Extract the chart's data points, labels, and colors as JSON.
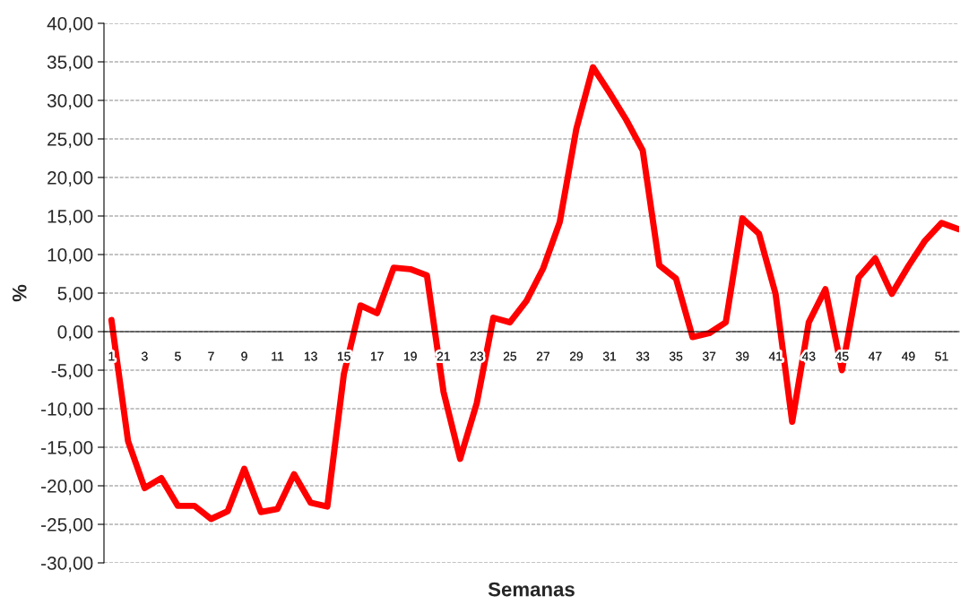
{
  "chart_data": {
    "type": "line",
    "xlabel": "Semanas",
    "ylabel": "%",
    "categories": [
      "1",
      null,
      "3",
      null,
      "5",
      null,
      "7",
      null,
      "9",
      null,
      "11",
      null,
      "13",
      null,
      "15",
      null,
      "17",
      null,
      "19",
      null,
      "21",
      null,
      "23",
      null,
      "25",
      null,
      "27",
      null,
      "29",
      null,
      "31",
      null,
      "33",
      null,
      "35",
      null,
      "37",
      null,
      "39",
      null,
      "41",
      null,
      "43",
      null,
      "45",
      null,
      "47",
      null,
      "49",
      null,
      "51",
      null
    ],
    "series": [
      {
        "color": "#ff0000",
        "values": [
          1.5,
          -14.2,
          -20.3,
          -19.0,
          -22.6,
          -22.6,
          -24.3,
          -23.3,
          -17.8,
          -23.4,
          -23.0,
          -18.5,
          -22.2,
          -22.7,
          -5.5,
          3.4,
          2.4,
          8.3,
          8.1,
          7.3,
          -7.8,
          -16.5,
          -9.3,
          1.8,
          1.2,
          4.0,
          8.2,
          14.2,
          26.3,
          34.3,
          31.0,
          27.5,
          23.5,
          8.6,
          6.9,
          -0.7,
          -0.2,
          1.2,
          14.7,
          12.7,
          4.9,
          -11.7,
          1.2,
          5.5,
          -5.0,
          7.0,
          9.5,
          4.9,
          8.5,
          11.8,
          14.1,
          13.3
        ]
      }
    ],
    "ylim": [
      -30,
      40
    ],
    "yticks": [
      {
        "value": -30,
        "label": "-30,00"
      },
      {
        "value": -25,
        "label": "-25,00"
      },
      {
        "value": -20,
        "label": "-20,00"
      },
      {
        "value": -15,
        "label": "-15,00"
      },
      {
        "value": -10,
        "label": "-10,00"
      },
      {
        "value": -5,
        "label": "-5,00"
      },
      {
        "value": 0,
        "label": "0,00"
      },
      {
        "value": 5,
        "label": "5,00"
      },
      {
        "value": 10,
        "label": "10,00"
      },
      {
        "value": 15,
        "label": "15,00"
      },
      {
        "value": 20,
        "label": "20,00"
      },
      {
        "value": 25,
        "label": "25,00"
      },
      {
        "value": 30,
        "label": "30,00"
      },
      {
        "value": 35,
        "label": "35,00"
      },
      {
        "value": 40,
        "label": "40,00"
      }
    ],
    "grid": "y",
    "marker": "none",
    "line_style": "solid"
  }
}
